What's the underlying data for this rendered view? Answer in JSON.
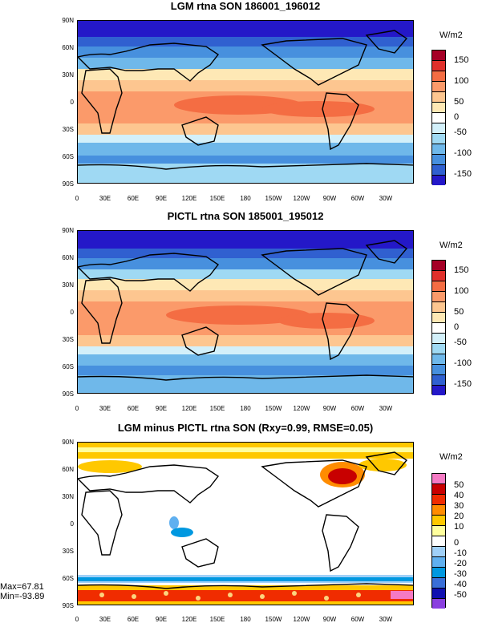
{
  "panels": [
    {
      "title": "LGM rtna SON 186001_196012",
      "units": "W/m2",
      "colorbar_labels": [
        "150",
        "100",
        "50",
        "0",
        "-50",
        "-100",
        "-150"
      ],
      "colors": [
        "#a50026",
        "#e0302b",
        "#f46d43",
        "#fb9a6a",
        "#fdc690",
        "#fee8b5",
        "#ffffff",
        "#d3f0fa",
        "#9fd9f3",
        "#6fb8ea",
        "#4790de",
        "#3060d0",
        "#2418c8"
      ]
    },
    {
      "title": "PICTL rtna SON 185001_195012",
      "units": "W/m2",
      "colorbar_labels": [
        "150",
        "100",
        "50",
        "0",
        "-50",
        "-100",
        "-150"
      ],
      "colors": [
        "#a50026",
        "#e0302b",
        "#f46d43",
        "#fb9a6a",
        "#fdc690",
        "#fee8b5",
        "#ffffff",
        "#d3f0fa",
        "#9fd9f3",
        "#6fb8ea",
        "#4790de",
        "#3060d0",
        "#2418c8"
      ]
    },
    {
      "title": "LGM minus PICTL rtna SON (Rxy=0.99, RMSE=0.05)",
      "units": "W/m2",
      "colorbar_labels": [
        "50",
        "40",
        "30",
        "20",
        "10",
        "0",
        "-10",
        "-20",
        "-30",
        "-40",
        "-50"
      ],
      "colors": [
        "#f57ac4",
        "#c80000",
        "#f02c00",
        "#ff8c00",
        "#ffc800",
        "#ffff9e",
        "#ffffff",
        "#a0d0f8",
        "#60b0f0",
        "#0098e0",
        "#3a6fd8",
        "#1010b0",
        "#8a40e0"
      ],
      "stats": [
        "Max=67.81",
        "Min=-93.89"
      ]
    }
  ],
  "lat_labels": [
    "90N",
    "60N",
    "30N",
    "0",
    "30S",
    "60S",
    "90S"
  ],
  "lon_labels": [
    "0",
    "30E",
    "60E",
    "90E",
    "120E",
    "150E",
    "180",
    "150W",
    "120W",
    "90W",
    "60W",
    "30W"
  ]
}
